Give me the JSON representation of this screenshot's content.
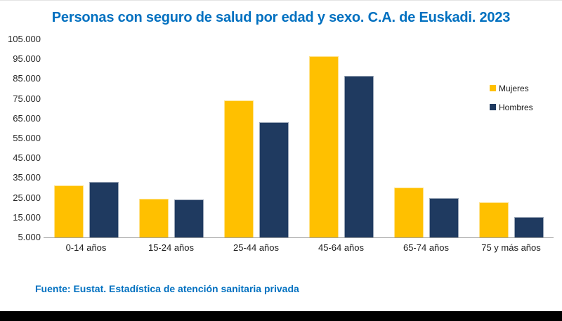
{
  "title": "Personas con seguro de salud por edad y sexo. C.A. de Euskadi. 2023",
  "source_note": "Fuente: Eustat. Estadística de atención sanitaria privada",
  "colors": {
    "title_blue": "#0070C0",
    "mujeres_yellow": "#FFC000",
    "hombres_navy": "#1F3A60",
    "axis_line": "#a0a0a0",
    "tick_text": "#262626",
    "bottom_bar_black": "#000000"
  },
  "legend": {
    "position": "right",
    "items": [
      {
        "label": "Mujeres",
        "color": "#FFC000"
      },
      {
        "label": "Hombres",
        "color": "#1F3A60"
      }
    ]
  },
  "chart_data": {
    "type": "bar",
    "title": "Personas con seguro de salud por edad y sexo. C.A. de Euskadi. 2023",
    "xlabel": "",
    "ylabel": "",
    "categories": [
      "0-14 años",
      "15-24 años",
      "25-44 años",
      "45-64 años",
      "65-74 años",
      "75 y más años"
    ],
    "series": [
      {
        "name": "Mujeres",
        "color": "#FFC000",
        "values": [
          31100,
          24400,
          74000,
          96400,
          30200,
          22800
        ]
      },
      {
        "name": "Hombres",
        "color": "#1F3A60",
        "values": [
          32900,
          24000,
          63300,
          86700,
          25000,
          15400
        ]
      }
    ],
    "ylim": [
      5000,
      105000
    ],
    "ytick_step": 10000,
    "ytick_labels": [
      "105.000",
      "95.000",
      "85.000",
      "75.000",
      "65.000",
      "55.000",
      "45.000",
      "35.000",
      "25.000",
      "15.000",
      "5.000"
    ],
    "grid": false,
    "legend_position": "right"
  }
}
